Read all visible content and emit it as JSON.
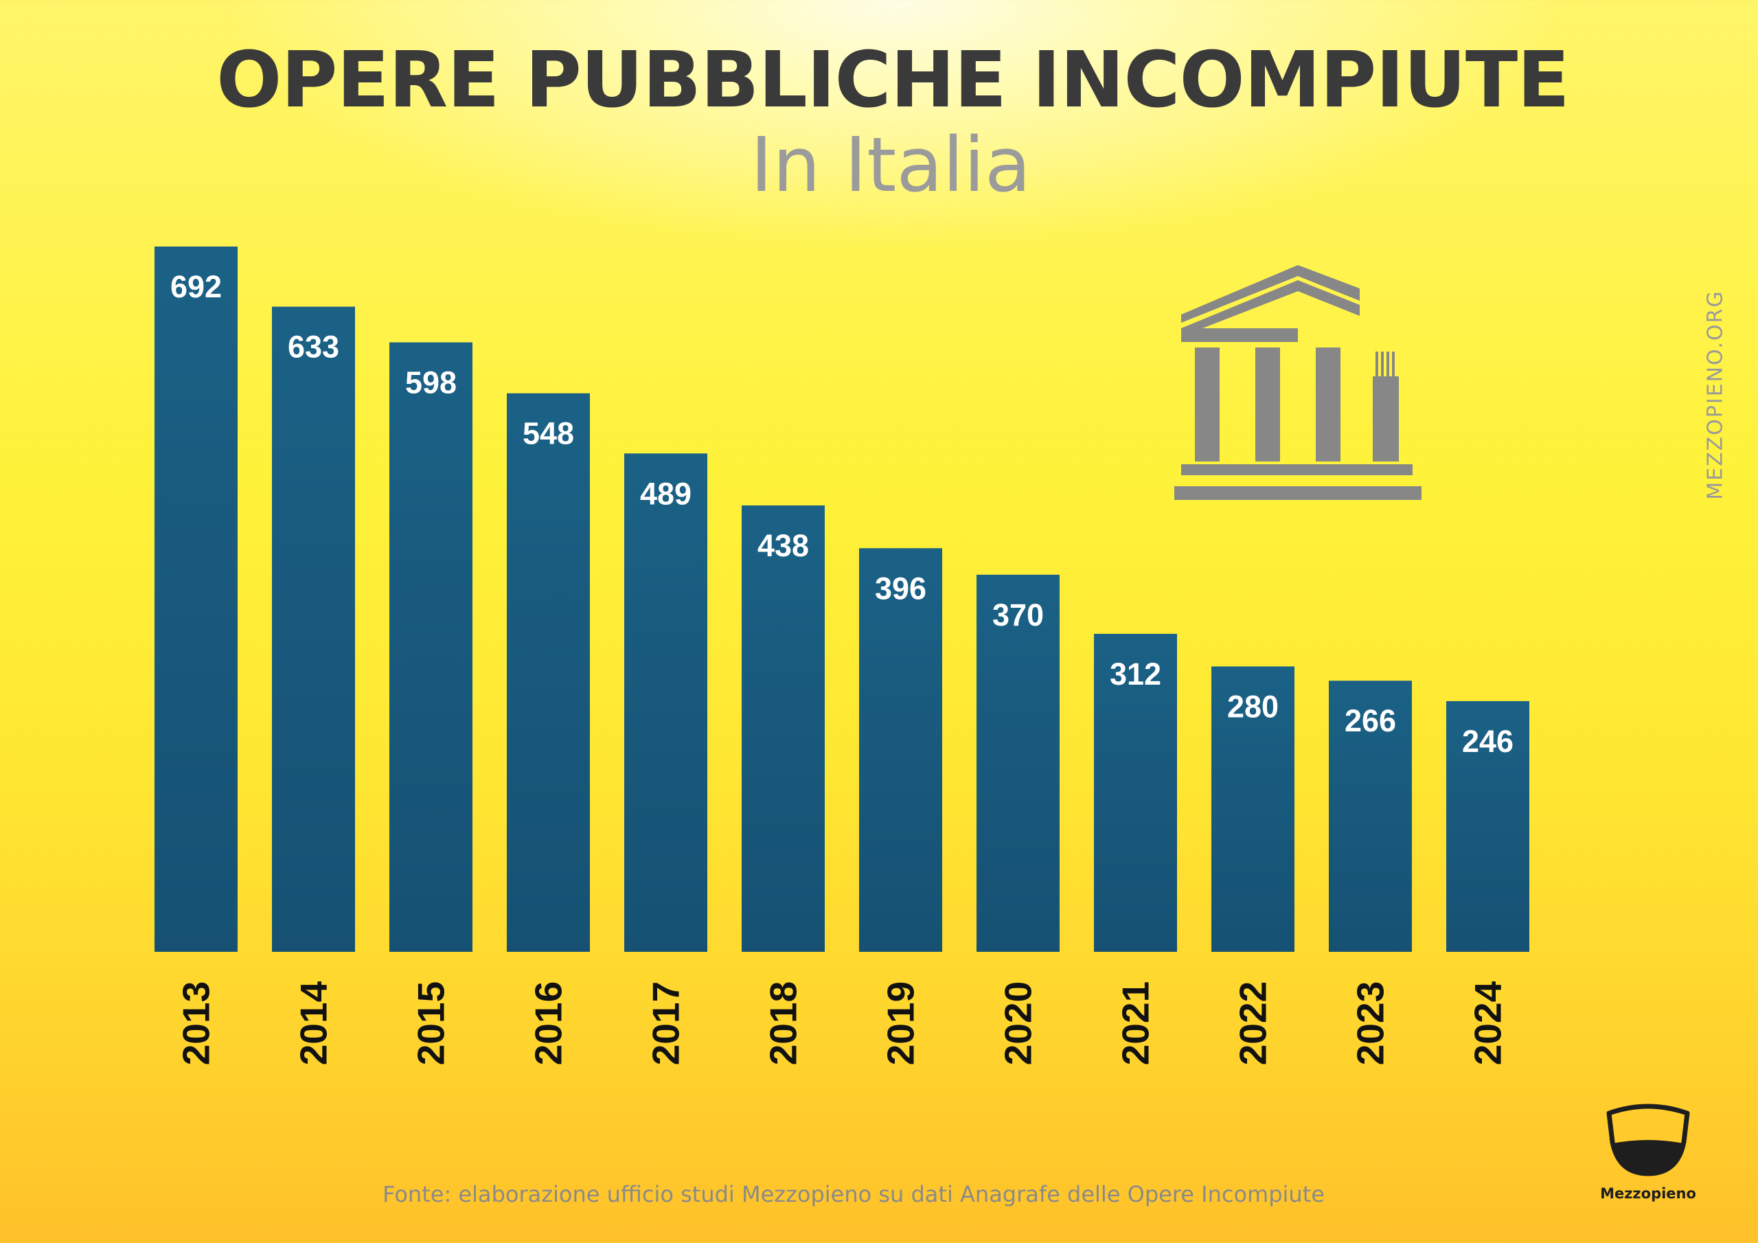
{
  "title": "OPERE PUBBLICHE INCOMPIUTE",
  "subtitle": "In Italia",
  "watermark": "MEZZOPIENO.ORG",
  "source": "Fonte: elaborazione ufficio studi Mezzopieno su dati Anagrafe delle Opere Incompiute",
  "logo_text": "Mezzopieno",
  "icons": {
    "illustration": "temple-icon",
    "logo": "glass-icon"
  },
  "colors": {
    "bar_top": "#1b6186",
    "bar_bottom": "#165173",
    "value_label": "#ffffff",
    "year_label": "#111111"
  },
  "chart_data": {
    "type": "bar",
    "title": "OPERE PUBBLICHE INCOMPIUTE",
    "subtitle": "In Italia",
    "categories": [
      "2013",
      "2014",
      "2015",
      "2016",
      "2017",
      "2018",
      "2019",
      "2020",
      "2021",
      "2022",
      "2023",
      "2024"
    ],
    "values": [
      692,
      633,
      598,
      548,
      489,
      438,
      396,
      370,
      312,
      280,
      266,
      246
    ],
    "xlabel": "",
    "ylabel": "",
    "ylim": [
      0,
      692
    ],
    "grid": false,
    "legend": "none",
    "data_labels": true
  }
}
